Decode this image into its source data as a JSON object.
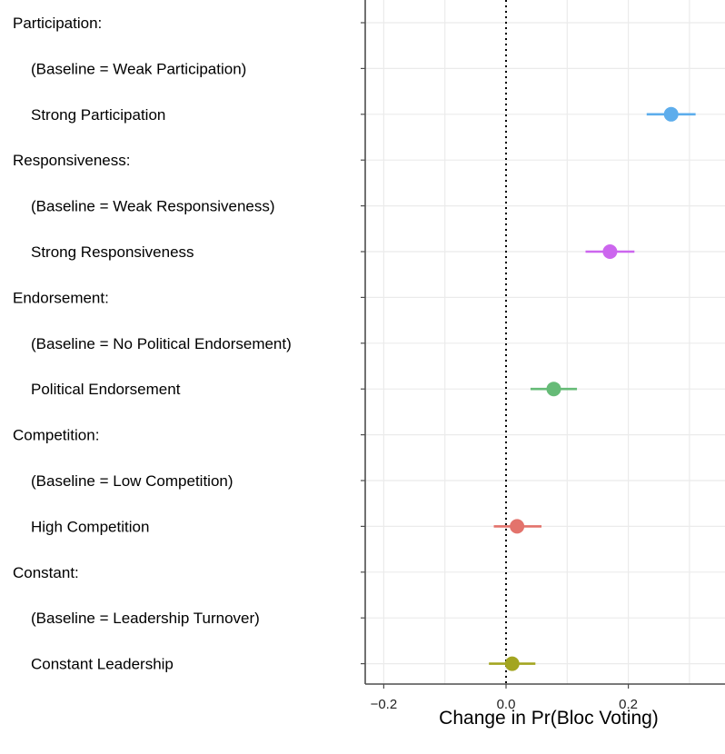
{
  "chart_data": {
    "type": "scatter",
    "subtype": "coefficient-plot",
    "xlabel": "Change in Pr(Bloc Voting)",
    "xlim": [
      -0.25,
      0.36
    ],
    "xticks": [
      {
        "value": -0.2,
        "label": "−0.2"
      },
      {
        "value": 0.0,
        "label": "0.0"
      },
      {
        "value": 0.2,
        "label": "0.2"
      }
    ],
    "reference_line": {
      "x": 0.0,
      "style": "dotted"
    },
    "grid": true,
    "rows": [
      {
        "label": "Participation:",
        "kind": "header"
      },
      {
        "label": "(Baseline = Weak Participation)",
        "kind": "baseline"
      },
      {
        "label": "Strong Participation",
        "kind": "estimate",
        "estimate": 0.27,
        "lower": 0.23,
        "upper": 0.31,
        "color": "#5DADEC"
      },
      {
        "label": "Responsiveness:",
        "kind": "header"
      },
      {
        "label": "(Baseline = Weak Responsiveness)",
        "kind": "baseline"
      },
      {
        "label": "Strong Responsiveness",
        "kind": "estimate",
        "estimate": 0.17,
        "lower": 0.13,
        "upper": 0.21,
        "color": "#CC66EE"
      },
      {
        "label": "Endorsement:",
        "kind": "header"
      },
      {
        "label": "(Baseline = No Political Endorsement)",
        "kind": "baseline"
      },
      {
        "label": "Political Endorsement",
        "kind": "estimate",
        "estimate": 0.078,
        "lower": 0.04,
        "upper": 0.116,
        "color": "#66BB77"
      },
      {
        "label": "Competition:",
        "kind": "header"
      },
      {
        "label": "(Baseline = Low Competition)",
        "kind": "baseline"
      },
      {
        "label": "High Competition",
        "kind": "estimate",
        "estimate": 0.018,
        "lower": -0.02,
        "upper": 0.058,
        "color": "#E3736C"
      },
      {
        "label": "Constant:",
        "kind": "header"
      },
      {
        "label": "(Baseline = Leadership Turnover)",
        "kind": "baseline"
      },
      {
        "label": "Constant Leadership",
        "kind": "estimate",
        "estimate": 0.01,
        "lower": -0.028,
        "upper": 0.048,
        "color": "#A3A520"
      }
    ]
  }
}
